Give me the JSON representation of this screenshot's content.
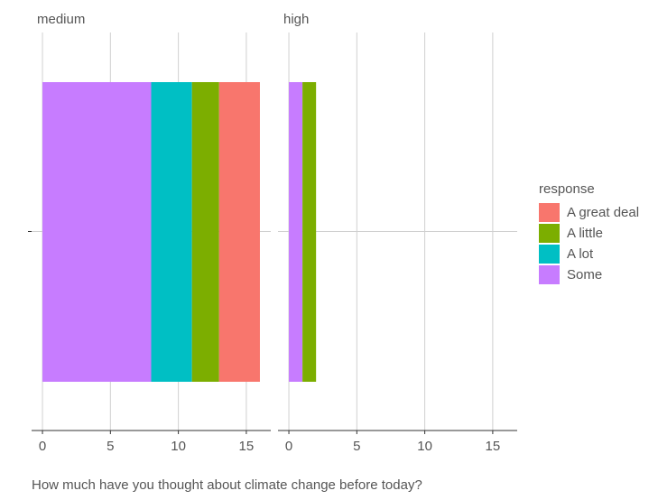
{
  "chart_data": {
    "type": "bar",
    "stacked": true,
    "orientation": "horizontal",
    "facets": [
      "medium",
      "high"
    ],
    "x_label": "How much have you thought about climate change before today?",
    "legend_title": "response",
    "series": [
      {
        "name": "A great deal",
        "color": "#f8766d",
        "values": [
          3,
          0
        ]
      },
      {
        "name": "A little",
        "color": "#7cae00",
        "values": [
          2,
          1
        ]
      },
      {
        "name": "A lot",
        "color": "#00bfc4",
        "values": [
          3,
          0
        ]
      },
      {
        "name": "Some",
        "color": "#c77cff",
        "values": [
          8,
          1
        ]
      }
    ],
    "xlim": [
      -0.8,
      16.8
    ],
    "xticks": [
      0,
      5,
      10,
      15
    ],
    "grid": true
  }
}
